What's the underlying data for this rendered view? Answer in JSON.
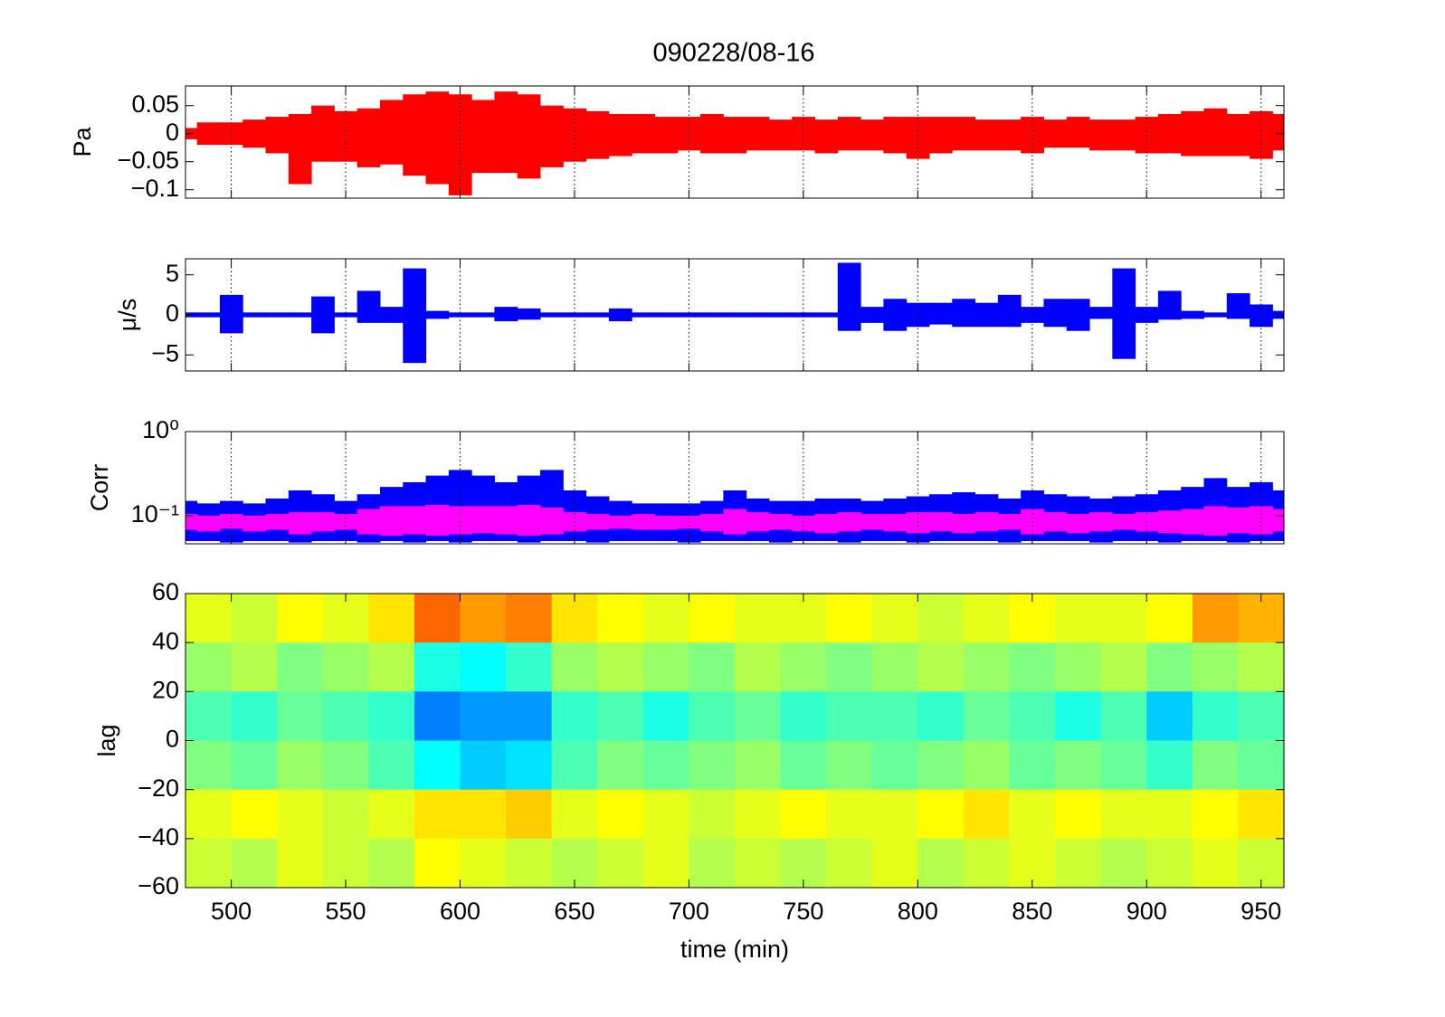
{
  "chart_data": [
    {
      "type": "envelope",
      "title": "090228/08-16",
      "ylabel": "Pa",
      "xlim": [
        480,
        960
      ],
      "ylim": [
        -0.115,
        0.085
      ],
      "yticks": [
        0.05,
        0,
        {
          "value": -0.05,
          "label": "−0.05"
        },
        {
          "value": -0.1,
          "label": "−0.1"
        }
      ],
      "xgrid": true,
      "x": [
        480,
        490,
        500,
        510,
        520,
        530,
        540,
        550,
        560,
        570,
        580,
        590,
        600,
        610,
        620,
        630,
        640,
        650,
        660,
        670,
        680,
        690,
        700,
        710,
        720,
        730,
        740,
        750,
        760,
        770,
        780,
        790,
        800,
        810,
        820,
        830,
        840,
        850,
        860,
        870,
        880,
        890,
        900,
        910,
        920,
        930,
        940,
        950,
        960
      ],
      "series": [
        {
          "color": "#ff0000",
          "high": [
            0.01,
            0.02,
            0.02,
            0.025,
            0.03,
            0.035,
            0.05,
            0.04,
            0.045,
            0.06,
            0.07,
            0.075,
            0.07,
            0.06,
            0.075,
            0.07,
            0.05,
            0.045,
            0.04,
            0.035,
            0.035,
            0.03,
            0.03,
            0.035,
            0.03,
            0.03,
            0.025,
            0.03,
            0.025,
            0.03,
            0.025,
            0.03,
            0.03,
            0.03,
            0.03,
            0.025,
            0.025,
            0.03,
            0.025,
            0.03,
            0.025,
            0.025,
            0.03,
            0.035,
            0.04,
            0.045,
            0.035,
            0.04,
            0.035
          ],
          "low": [
            -0.01,
            -0.02,
            -0.02,
            -0.025,
            -0.035,
            -0.09,
            -0.05,
            -0.05,
            -0.06,
            -0.055,
            -0.075,
            -0.09,
            -0.11,
            -0.07,
            -0.07,
            -0.08,
            -0.06,
            -0.05,
            -0.045,
            -0.04,
            -0.035,
            -0.035,
            -0.03,
            -0.035,
            -0.035,
            -0.03,
            -0.03,
            -0.03,
            -0.035,
            -0.03,
            -0.03,
            -0.035,
            -0.045,
            -0.035,
            -0.03,
            -0.03,
            -0.03,
            -0.035,
            -0.025,
            -0.025,
            -0.03,
            -0.03,
            -0.035,
            -0.035,
            -0.04,
            -0.04,
            -0.04,
            -0.045,
            -0.03
          ]
        }
      ]
    },
    {
      "type": "envelope",
      "ylabel": "μ/s",
      "xlim": [
        480,
        960
      ],
      "ylim": [
        -7,
        7
      ],
      "yticks": [
        5,
        0,
        {
          "value": -5,
          "label": "−5"
        }
      ],
      "xgrid": true,
      "x": [
        480,
        490,
        500,
        510,
        520,
        530,
        540,
        550,
        560,
        570,
        580,
        590,
        600,
        610,
        620,
        630,
        640,
        650,
        660,
        670,
        680,
        690,
        700,
        710,
        720,
        730,
        740,
        750,
        760,
        770,
        780,
        790,
        800,
        810,
        820,
        830,
        840,
        850,
        860,
        870,
        880,
        890,
        900,
        910,
        920,
        930,
        940,
        950,
        960
      ],
      "series": [
        {
          "color": "#0000ff",
          "high": [
            0.3,
            0.3,
            2.5,
            0.3,
            0.3,
            0.3,
            2.3,
            0.3,
            3,
            1,
            5.8,
            0.5,
            0.3,
            0.3,
            1,
            0.8,
            0.3,
            0.3,
            0.3,
            0.8,
            0.3,
            0.3,
            0.3,
            0.3,
            0.3,
            0.3,
            0.3,
            0.3,
            0.3,
            6.5,
            1,
            2,
            1.5,
            1.5,
            2,
            1.5,
            2.5,
            1,
            2,
            2,
            1,
            5.8,
            1,
            3,
            0.5,
            0.3,
            2.7,
            1.3,
            0.5
          ],
          "low": [
            -0.3,
            -0.3,
            -2.3,
            -0.3,
            -0.3,
            -0.3,
            -2.3,
            -0.3,
            -1,
            -1,
            -6,
            -0.5,
            -0.3,
            -0.3,
            -0.8,
            -0.6,
            -0.3,
            -0.3,
            -0.3,
            -0.8,
            -0.3,
            -0.3,
            -0.3,
            -0.3,
            -0.3,
            -0.3,
            -0.3,
            -0.3,
            -0.3,
            -2,
            -1,
            -2,
            -1.5,
            -1.2,
            -1.5,
            -1.5,
            -1.5,
            -1,
            -1.5,
            -2,
            -0.5,
            -5.5,
            -1,
            -0.6,
            -0.5,
            -0.3,
            -0.5,
            -1.5,
            -0.5
          ]
        }
      ]
    },
    {
      "type": "envelope",
      "ylabel": "Corr",
      "xlim": [
        480,
        960
      ],
      "ylim": [
        0.0464,
        1
      ],
      "log": true,
      "yticks": [
        {
          "value": 1,
          "label": "10⁰"
        },
        {
          "value": 0.1,
          "label": "10⁻¹"
        }
      ],
      "xgrid": true,
      "x": [
        480,
        490,
        500,
        510,
        520,
        530,
        540,
        550,
        560,
        570,
        580,
        590,
        600,
        610,
        620,
        630,
        640,
        650,
        660,
        670,
        680,
        690,
        700,
        710,
        720,
        730,
        740,
        750,
        760,
        770,
        780,
        790,
        800,
        810,
        820,
        830,
        840,
        850,
        860,
        870,
        880,
        890,
        900,
        910,
        920,
        930,
        940,
        950,
        960
      ],
      "series": [
        {
          "color": "#0000ff",
          "high": [
            0.15,
            0.14,
            0.15,
            0.14,
            0.16,
            0.2,
            0.18,
            0.15,
            0.18,
            0.22,
            0.25,
            0.3,
            0.35,
            0.3,
            0.25,
            0.3,
            0.35,
            0.2,
            0.17,
            0.15,
            0.14,
            0.14,
            0.14,
            0.15,
            0.2,
            0.16,
            0.15,
            0.15,
            0.16,
            0.16,
            0.15,
            0.16,
            0.17,
            0.18,
            0.19,
            0.18,
            0.16,
            0.2,
            0.18,
            0.17,
            0.16,
            0.17,
            0.18,
            0.2,
            0.22,
            0.28,
            0.22,
            0.25,
            0.2
          ],
          "low": [
            0.05,
            0.05,
            0.048,
            0.05,
            0.05,
            0.048,
            0.05,
            0.05,
            0.048,
            0.05,
            0.048,
            0.05,
            0.048,
            0.05,
            0.05,
            0.048,
            0.05,
            0.05,
            0.048,
            0.05,
            0.05,
            0.05,
            0.048,
            0.05,
            0.05,
            0.05,
            0.048,
            0.05,
            0.05,
            0.048,
            0.05,
            0.05,
            0.048,
            0.05,
            0.05,
            0.05,
            0.048,
            0.05,
            0.05,
            0.05,
            0.048,
            0.05,
            0.05,
            0.048,
            0.05,
            0.05,
            0.048,
            0.05,
            0.05
          ]
        },
        {
          "color": "#ff00ff",
          "high": [
            0.105,
            0.1,
            0.105,
            0.1,
            0.105,
            0.11,
            0.11,
            0.105,
            0.12,
            0.13,
            0.13,
            0.135,
            0.13,
            0.13,
            0.13,
            0.135,
            0.125,
            0.11,
            0.105,
            0.1,
            0.105,
            0.1,
            0.1,
            0.105,
            0.12,
            0.11,
            0.105,
            0.1,
            0.105,
            0.11,
            0.105,
            0.105,
            0.11,
            0.11,
            0.105,
            0.11,
            0.105,
            0.12,
            0.11,
            0.105,
            0.11,
            0.105,
            0.11,
            0.115,
            0.12,
            0.13,
            0.125,
            0.13,
            0.12
          ],
          "low": [
            0.068,
            0.065,
            0.07,
            0.065,
            0.068,
            0.06,
            0.065,
            0.068,
            0.06,
            0.058,
            0.06,
            0.058,
            0.06,
            0.062,
            0.06,
            0.058,
            0.06,
            0.065,
            0.068,
            0.07,
            0.068,
            0.068,
            0.07,
            0.065,
            0.06,
            0.065,
            0.068,
            0.065,
            0.062,
            0.065,
            0.068,
            0.065,
            0.062,
            0.065,
            0.062,
            0.065,
            0.068,
            0.06,
            0.065,
            0.062,
            0.065,
            0.068,
            0.065,
            0.062,
            0.06,
            0.058,
            0.062,
            0.06,
            0.065
          ]
        }
      ]
    },
    {
      "type": "heatmap",
      "ylabel": "lag",
      "xlabel": "time (min)",
      "xlim": [
        480,
        960
      ],
      "ylim": [
        -60,
        60
      ],
      "xticks": [
        500,
        550,
        600,
        650,
        700,
        750,
        800,
        850,
        900,
        950
      ],
      "yticks": [
        60,
        40,
        20,
        0,
        {
          "value": -20,
          "label": "−20"
        },
        {
          "value": -40,
          "label": "−40"
        },
        {
          "value": -60,
          "label": "−60"
        }
      ],
      "colormap": "jet",
      "clim": [
        -1,
        1
      ],
      "x": [
        490,
        510,
        530,
        550,
        570,
        590,
        610,
        630,
        650,
        670,
        690,
        710,
        730,
        750,
        770,
        790,
        810,
        830,
        850,
        870,
        890,
        910,
        930,
        950
      ],
      "y": [
        50,
        30,
        10,
        -10,
        -30,
        -50
      ],
      "z": [
        [
          0.2,
          0.15,
          0.25,
          0.2,
          0.3,
          0.55,
          0.45,
          0.5,
          0.3,
          0.25,
          0.2,
          0.25,
          0.2,
          0.2,
          0.25,
          0.2,
          0.15,
          0.2,
          0.25,
          0.2,
          0.2,
          0.25,
          0.45,
          0.4
        ],
        [
          0.05,
          0.1,
          0,
          0.05,
          0.1,
          -0.2,
          -0.25,
          -0.15,
          0.05,
          0.1,
          0.05,
          0,
          0.1,
          0.05,
          0,
          0.05,
          0.1,
          0.05,
          0,
          0.05,
          0.1,
          0,
          0.05,
          0.1
        ],
        [
          -0.1,
          -0.15,
          -0.05,
          -0.1,
          -0.15,
          -0.5,
          -0.45,
          -0.45,
          -0.15,
          -0.1,
          -0.2,
          -0.1,
          -0.05,
          -0.15,
          -0.1,
          -0.1,
          -0.15,
          -0.05,
          -0.1,
          -0.2,
          -0.1,
          -0.35,
          -0.15,
          -0.1
        ],
        [
          0,
          -0.05,
          0.05,
          0,
          -0.1,
          -0.25,
          -0.35,
          -0.3,
          -0.1,
          0,
          -0.05,
          0,
          0.05,
          -0.05,
          0,
          -0.05,
          0,
          0.05,
          -0.05,
          0,
          -0.05,
          -0.15,
          0,
          -0.05
        ],
        [
          0.2,
          0.25,
          0.2,
          0.15,
          0.2,
          0.3,
          0.3,
          0.35,
          0.2,
          0.25,
          0.2,
          0.15,
          0.2,
          0.25,
          0.2,
          0.2,
          0.25,
          0.3,
          0.2,
          0.25,
          0.2,
          0.2,
          0.25,
          0.3
        ],
        [
          0.15,
          0.1,
          0.2,
          0.15,
          0.1,
          0.25,
          0.2,
          0.15,
          0.1,
          0.15,
          0.2,
          0.1,
          0.15,
          0.1,
          0.15,
          0.2,
          0.1,
          0.15,
          0.2,
          0.15,
          0.1,
          0.15,
          0.2,
          0.15
        ]
      ]
    }
  ]
}
